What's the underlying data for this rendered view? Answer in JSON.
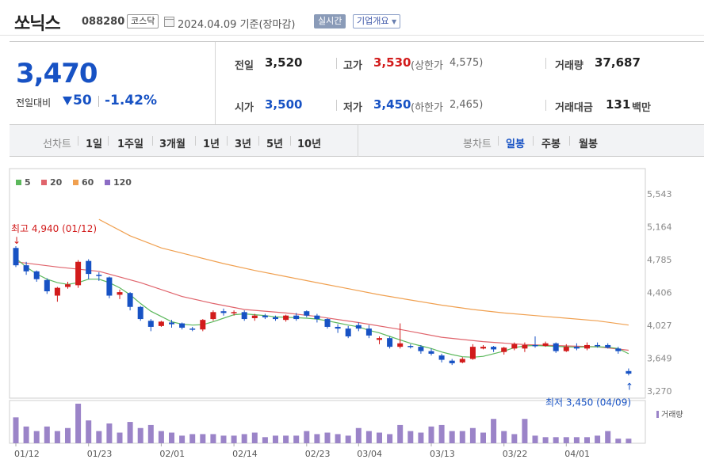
{
  "header": {
    "stock_name": "쏘닉스",
    "stock_code": "088280",
    "market_badge": "코스닥",
    "date_text": "2024.04.09  기준(장마감)",
    "realtime_button": "실시간",
    "overview_button": "기업개요"
  },
  "quote": {
    "price": "3,470",
    "change_label": "전일대비",
    "change": "50",
    "change_rate": "-1.42%",
    "prev_label": "전일",
    "prev_value": "3,520",
    "open_label": "시가",
    "open_value": "3,500",
    "high_label": "고가",
    "high_value": "3,530",
    "upper_limit_label": "(상한가",
    "upper_limit_value": "4,575)",
    "low_label": "저가",
    "low_value": "3,450",
    "lower_limit_label": "(하한가",
    "lower_limit_value": "2,465)",
    "volume_label": "거래량",
    "volume_value": "37,687",
    "amount_label": "거래대금",
    "amount_value": "131",
    "amount_unit": "백만",
    "up_color": "#d21b1b",
    "down_color": "#1752c4"
  },
  "periods": {
    "line_label": "선차트",
    "line_items": [
      "1일",
      "1주일",
      "3개월",
      "1년",
      "3년",
      "5년",
      "10년"
    ],
    "candle_label": "봉차트",
    "candle_items": [
      "일봉",
      "주봉",
      "월봉"
    ],
    "active_candle": "일봉"
  },
  "chart_data": {
    "type": "candlestick",
    "title": "",
    "x_tick_labels": [
      "01/12",
      "01/23",
      "02/01",
      "02/14",
      "02/23",
      "03/04",
      "03/13",
      "03/22",
      "04/01"
    ],
    "y_tick_labels": [
      "5,543",
      "5,164",
      "4,785",
      "4,406",
      "4,027",
      "3,649",
      "3,270"
    ],
    "y_range": [
      3270,
      5543
    ],
    "legend": [
      {
        "name": "5",
        "color": "#5cb85c"
      },
      {
        "name": "20",
        "color": "#e0646c"
      },
      {
        "name": "60",
        "color": "#f0a050"
      },
      {
        "name": "120",
        "color": "#8c6cc4"
      }
    ],
    "candles": [
      {
        "date": "01/12",
        "open": 4920,
        "high": 4940,
        "low": 4700,
        "close": 4720,
        "volume": 34
      },
      {
        "date": "01/15",
        "open": 4720,
        "high": 4760,
        "low": 4610,
        "close": 4650,
        "volume": 22
      },
      {
        "date": "01/16",
        "open": 4650,
        "high": 4660,
        "low": 4530,
        "close": 4560,
        "volume": 16
      },
      {
        "date": "01/17",
        "open": 4550,
        "high": 4570,
        "low": 4390,
        "close": 4420,
        "volume": 22
      },
      {
        "date": "01/18",
        "open": 4370,
        "high": 4470,
        "low": 4300,
        "close": 4460,
        "volume": 16
      },
      {
        "date": "01/19",
        "open": 4470,
        "high": 4530,
        "low": 4450,
        "close": 4500,
        "volume": 20
      },
      {
        "date": "01/22",
        "open": 4490,
        "high": 4780,
        "low": 4460,
        "close": 4760,
        "volume": 52
      },
      {
        "date": "01/23",
        "open": 4770,
        "high": 4790,
        "low": 4560,
        "close": 4620,
        "volume": 30
      },
      {
        "date": "01/24",
        "open": 4610,
        "high": 4640,
        "low": 4540,
        "close": 4600,
        "volume": 16
      },
      {
        "date": "01/25",
        "open": 4580,
        "high": 4590,
        "low": 4340,
        "close": 4370,
        "volume": 26
      },
      {
        "date": "01/26",
        "open": 4380,
        "high": 4440,
        "low": 4330,
        "close": 4410,
        "volume": 14
      },
      {
        "date": "01/29",
        "open": 4400,
        "high": 4410,
        "low": 4200,
        "close": 4240,
        "volume": 28
      },
      {
        "date": "01/30",
        "open": 4240,
        "high": 4250,
        "low": 4080,
        "close": 4100,
        "volume": 20
      },
      {
        "date": "01/31",
        "open": 4080,
        "high": 4100,
        "low": 3960,
        "close": 4010,
        "volume": 24
      },
      {
        "date": "02/01",
        "open": 4020,
        "high": 4080,
        "low": 4010,
        "close": 4070,
        "volume": 16
      },
      {
        "date": "02/02",
        "open": 4060,
        "high": 4090,
        "low": 4000,
        "close": 4040,
        "volume": 14
      },
      {
        "date": "02/05",
        "open": 4050,
        "high": 4060,
        "low": 3980,
        "close": 4000,
        "volume": 10
      },
      {
        "date": "02/06",
        "open": 3990,
        "high": 4010,
        "low": 3960,
        "close": 3980,
        "volume": 12
      },
      {
        "date": "02/07",
        "open": 3980,
        "high": 4100,
        "low": 3960,
        "close": 4090,
        "volume": 12
      },
      {
        "date": "02/08",
        "open": 4100,
        "high": 4200,
        "low": 4080,
        "close": 4180,
        "volume": 12
      },
      {
        "date": "02/13",
        "open": 4190,
        "high": 4220,
        "low": 4140,
        "close": 4170,
        "volume": 10
      },
      {
        "date": "02/14",
        "open": 4170,
        "high": 4200,
        "low": 4140,
        "close": 4180,
        "volume": 10
      },
      {
        "date": "02/15",
        "open": 4180,
        "high": 4200,
        "low": 4080,
        "close": 4100,
        "volume": 12
      },
      {
        "date": "02/16",
        "open": 4110,
        "high": 4160,
        "low": 4080,
        "close": 4140,
        "volume": 14
      },
      {
        "date": "02/19",
        "open": 4140,
        "high": 4160,
        "low": 4100,
        "close": 4120,
        "volume": 8
      },
      {
        "date": "02/20",
        "open": 4120,
        "high": 4140,
        "low": 4080,
        "close": 4100,
        "volume": 10
      },
      {
        "date": "02/21",
        "open": 4090,
        "high": 4150,
        "low": 4070,
        "close": 4140,
        "volume": 10
      },
      {
        "date": "02/22",
        "open": 4140,
        "high": 4170,
        "low": 4080,
        "close": 4100,
        "volume": 10
      },
      {
        "date": "02/23",
        "open": 4190,
        "high": 4200,
        "low": 4120,
        "close": 4140,
        "volume": 16
      },
      {
        "date": "02/26",
        "open": 4140,
        "high": 4160,
        "low": 4060,
        "close": 4100,
        "volume": 12
      },
      {
        "date": "02/27",
        "open": 4100,
        "high": 4110,
        "low": 3990,
        "close": 4010,
        "volume": 14
      },
      {
        "date": "02/28",
        "open": 4010,
        "high": 4040,
        "low": 3940,
        "close": 3990,
        "volume": 12
      },
      {
        "date": "02/29",
        "open": 3990,
        "high": 4020,
        "low": 3880,
        "close": 3900,
        "volume": 10
      },
      {
        "date": "03/04",
        "open": 4030,
        "high": 4060,
        "low": 3960,
        "close": 3990,
        "volume": 20
      },
      {
        "date": "03/05",
        "open": 3990,
        "high": 4030,
        "low": 3880,
        "close": 3910,
        "volume": 16
      },
      {
        "date": "03/06",
        "open": 3860,
        "high": 3900,
        "low": 3810,
        "close": 3880,
        "volume": 14
      },
      {
        "date": "03/07",
        "open": 3880,
        "high": 3900,
        "low": 3760,
        "close": 3780,
        "volume": 12
      },
      {
        "date": "03/08",
        "open": 3780,
        "high": 4050,
        "low": 3760,
        "close": 3820,
        "volume": 24
      },
      {
        "date": "03/11",
        "open": 3790,
        "high": 3810,
        "low": 3760,
        "close": 3780,
        "volume": 16
      },
      {
        "date": "03/12",
        "open": 3780,
        "high": 3800,
        "low": 3700,
        "close": 3730,
        "volume": 14
      },
      {
        "date": "03/13",
        "open": 3730,
        "high": 3760,
        "low": 3680,
        "close": 3700,
        "volume": 22
      },
      {
        "date": "03/14",
        "open": 3680,
        "high": 3700,
        "low": 3600,
        "close": 3630,
        "volume": 24
      },
      {
        "date": "03/15",
        "open": 3620,
        "high": 3640,
        "low": 3570,
        "close": 3590,
        "volume": 16
      },
      {
        "date": "03/18",
        "open": 3600,
        "high": 3660,
        "low": 3590,
        "close": 3640,
        "volume": 16
      },
      {
        "date": "03/19",
        "open": 3640,
        "high": 3810,
        "low": 3630,
        "close": 3780,
        "volume": 20
      },
      {
        "date": "03/20",
        "open": 3760,
        "high": 3800,
        "low": 3750,
        "close": 3780,
        "volume": 14
      },
      {
        "date": "03/21",
        "open": 3780,
        "high": 3790,
        "low": 3720,
        "close": 3750,
        "volume": 32
      },
      {
        "date": "03/22",
        "open": 3720,
        "high": 3780,
        "low": 3690,
        "close": 3770,
        "volume": 16
      },
      {
        "date": "03/25",
        "open": 3760,
        "high": 3830,
        "low": 3740,
        "close": 3810,
        "volume": 12
      },
      {
        "date": "03/26",
        "open": 3760,
        "high": 3830,
        "low": 3720,
        "close": 3800,
        "volume": 32
      },
      {
        "date": "03/27",
        "open": 3800,
        "high": 3900,
        "low": 3770,
        "close": 3790,
        "volume": 10
      },
      {
        "date": "03/28",
        "open": 3790,
        "high": 3840,
        "low": 3780,
        "close": 3820,
        "volume": 8
      },
      {
        "date": "03/29",
        "open": 3820,
        "high": 3830,
        "low": 3710,
        "close": 3730,
        "volume": 8
      },
      {
        "date": "04/01",
        "open": 3730,
        "high": 3810,
        "low": 3720,
        "close": 3780,
        "volume": 8
      },
      {
        "date": "04/02",
        "open": 3780,
        "high": 3820,
        "low": 3740,
        "close": 3760,
        "volume": 8
      },
      {
        "date": "04/03",
        "open": 3760,
        "high": 3830,
        "low": 3740,
        "close": 3800,
        "volume": 8
      },
      {
        "date": "04/04",
        "open": 3800,
        "high": 3830,
        "low": 3770,
        "close": 3790,
        "volume": 10
      },
      {
        "date": "04/05",
        "open": 3800,
        "high": 3820,
        "low": 3760,
        "close": 3770,
        "volume": 16
      },
      {
        "date": "04/08",
        "open": 3760,
        "high": 3780,
        "low": 3700,
        "close": 3730,
        "volume": 6
      },
      {
        "date": "04/09",
        "open": 3500,
        "high": 3530,
        "low": 3450,
        "close": 3470,
        "volume": 6
      }
    ],
    "ma5": [
      [
        0,
        4800
      ],
      [
        1,
        4700
      ],
      [
        2,
        4620
      ],
      [
        3,
        4560
      ],
      [
        4,
        4520
      ],
      [
        5,
        4500
      ],
      [
        6,
        4520
      ],
      [
        7,
        4560
      ],
      [
        8,
        4560
      ],
      [
        9,
        4520
      ],
      [
        10,
        4460
      ],
      [
        11,
        4380
      ],
      [
        12,
        4280
      ],
      [
        13,
        4190
      ],
      [
        14,
        4130
      ],
      [
        15,
        4070
      ],
      [
        16,
        4040
      ],
      [
        17,
        4030
      ],
      [
        18,
        4035
      ],
      [
        19,
        4070
      ],
      [
        20,
        4110
      ],
      [
        21,
        4150
      ],
      [
        22,
        4160
      ],
      [
        23,
        4150
      ],
      [
        24,
        4140
      ],
      [
        25,
        4125
      ],
      [
        26,
        4120
      ],
      [
        27,
        4115
      ],
      [
        28,
        4110
      ],
      [
        29,
        4100
      ],
      [
        30,
        4080
      ],
      [
        31,
        4055
      ],
      [
        32,
        4030
      ],
      [
        33,
        4010
      ],
      [
        34,
        3970
      ],
      [
        35,
        3940
      ],
      [
        36,
        3900
      ],
      [
        37,
        3860
      ],
      [
        38,
        3820
      ],
      [
        39,
        3790
      ],
      [
        40,
        3760
      ],
      [
        41,
        3720
      ],
      [
        42,
        3690
      ],
      [
        43,
        3665
      ],
      [
        44,
        3660
      ],
      [
        45,
        3670
      ],
      [
        46,
        3700
      ],
      [
        47,
        3730
      ],
      [
        48,
        3770
      ],
      [
        49,
        3790
      ],
      [
        50,
        3795
      ],
      [
        51,
        3790
      ],
      [
        52,
        3785
      ],
      [
        53,
        3780
      ],
      [
        54,
        3775
      ],
      [
        55,
        3780
      ],
      [
        56,
        3780
      ],
      [
        57,
        3775
      ],
      [
        58,
        3760
      ],
      [
        59,
        3700
      ]
    ],
    "ma20": [
      [
        0,
        4760
      ],
      [
        4,
        4700
      ],
      [
        8,
        4650
      ],
      [
        12,
        4520
      ],
      [
        16,
        4360
      ],
      [
        19,
        4280
      ],
      [
        22,
        4210
      ],
      [
        26,
        4170
      ],
      [
        29,
        4130
      ],
      [
        33,
        4060
      ],
      [
        37,
        3980
      ],
      [
        41,
        3890
      ],
      [
        45,
        3840
      ],
      [
        49,
        3805
      ],
      [
        53,
        3790
      ],
      [
        56,
        3780
      ],
      [
        59,
        3740
      ]
    ],
    "ma60": [
      [
        8,
        5250
      ],
      [
        11,
        5060
      ],
      [
        14,
        4920
      ],
      [
        17,
        4830
      ],
      [
        20,
        4740
      ],
      [
        23,
        4660
      ],
      [
        26,
        4590
      ],
      [
        29,
        4520
      ],
      [
        32,
        4450
      ],
      [
        35,
        4380
      ],
      [
        38,
        4320
      ],
      [
        41,
        4260
      ],
      [
        44,
        4210
      ],
      [
        47,
        4170
      ],
      [
        50,
        4140
      ],
      [
        53,
        4110
      ],
      [
        56,
        4080
      ],
      [
        59,
        4030
      ]
    ],
    "annotations": {
      "high": "최고  4,940 (01/12)",
      "low": "최저  3,450 (04/09)"
    },
    "volume_label": "거래량"
  }
}
